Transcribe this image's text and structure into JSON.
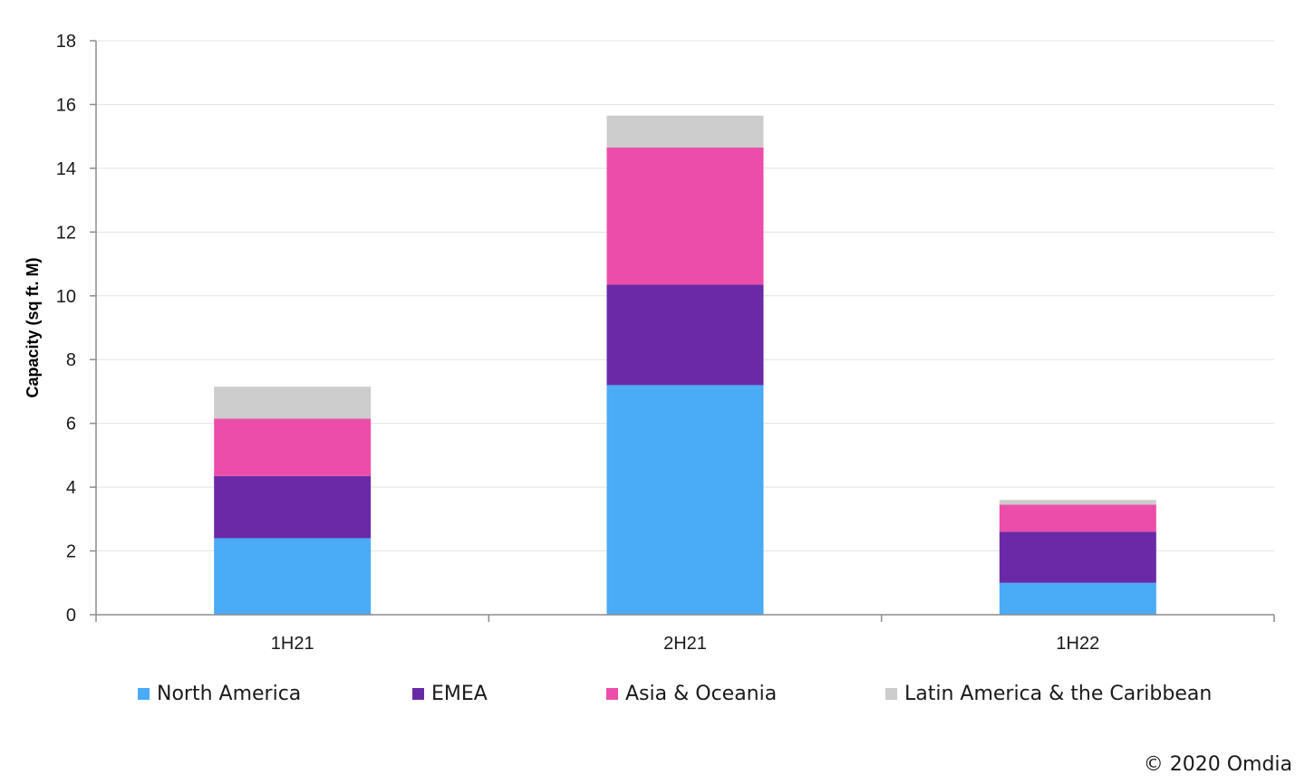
{
  "chart_data": {
    "type": "bar",
    "stacked": true,
    "categories": [
      "1H21",
      "2H21",
      "1H22"
    ],
    "series": [
      {
        "name": "North America",
        "color": "#4AABF7",
        "values": [
          2.4,
          7.2,
          1.0
        ]
      },
      {
        "name": "EMEA",
        "color": "#6A2AA8",
        "values": [
          1.95,
          3.15,
          1.6
        ]
      },
      {
        "name": "Asia & Oceania",
        "color": "#EC4DAA",
        "values": [
          1.8,
          4.3,
          0.85
        ]
      },
      {
        "name": "Latin America & the Caribbean",
        "color": "#CCCCCC",
        "values": [
          1.0,
          1.0,
          0.15
        ]
      }
    ],
    "ylabel": "Capacity (sq ft. M)",
    "ylim": [
      0,
      18
    ],
    "yticks": [
      0,
      2,
      4,
      6,
      8,
      10,
      12,
      14,
      16,
      18
    ],
    "grid": true,
    "legend_position": "bottom"
  },
  "copyright": "© 2020 Omdia"
}
